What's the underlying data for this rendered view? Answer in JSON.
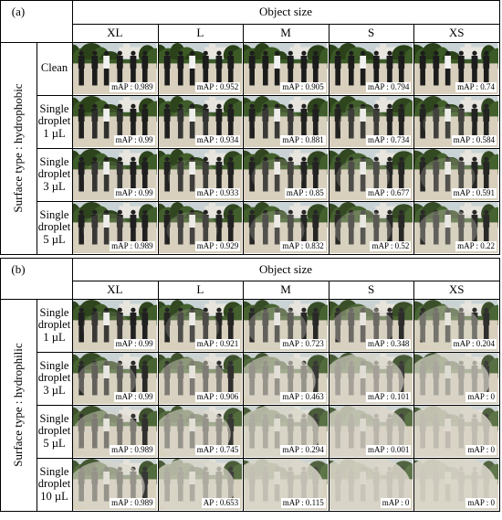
{
  "panels": [
    {
      "label": "(a)",
      "header": "Object size",
      "surface": "Surface type : hydrophobic",
      "columns": [
        "XL",
        "L",
        "M",
        "S",
        "XS"
      ],
      "rows": [
        {
          "label": [
            "Clean"
          ],
          "haze": [
            0,
            0,
            0,
            0,
            0
          ],
          "map": [
            "mAP : 0.989",
            "mAP : 0.952",
            "mAP : 0.905",
            "mAP : 0.794",
            "mAP : 0.74"
          ]
        },
        {
          "label": [
            "Single",
            "droplet",
            "1 µL"
          ],
          "haze": [
            0.05,
            0.08,
            0.1,
            0.12,
            0.14
          ],
          "map": [
            "mAP : 0.99",
            "mAP : 0.934",
            "mAP : 0.881",
            "mAP : 0.734",
            "mAP : 0.584"
          ]
        },
        {
          "label": [
            "Single",
            "droplet",
            "3 µL"
          ],
          "haze": [
            0.08,
            0.12,
            0.16,
            0.2,
            0.22
          ],
          "map": [
            "mAP : 0.99",
            "mAP : 0.933",
            "mAP : 0.85",
            "mAP : 0.677",
            "mAP : 0.591"
          ]
        },
        {
          "label": [
            "Single",
            "droplet",
            "5 µL"
          ],
          "haze": [
            0.1,
            0.16,
            0.22,
            0.26,
            0.3
          ],
          "map": [
            "mAP : 0.989",
            "mAP : 0.929",
            "mAP : 0.832",
            "mAP : 0.52",
            "mAP : 0.22"
          ]
        }
      ]
    },
    {
      "label": "(b)",
      "header": "Object size",
      "surface": "Surface type : hydrophilic",
      "columns": [
        "XL",
        "L",
        "M",
        "S",
        "XS"
      ],
      "rows": [
        {
          "label": [
            "Single",
            "droplet",
            "1 µL"
          ],
          "haze": [
            0.1,
            0.2,
            0.3,
            0.36,
            0.4
          ],
          "map": [
            "mAP : 0.99",
            "mAP : 0.921",
            "mAP : 0.723",
            "mAP : 0.348",
            "mAP : 0.204"
          ]
        },
        {
          "label": [
            "Single",
            "droplet",
            "3 µL"
          ],
          "haze": [
            0.3,
            0.45,
            0.6,
            0.68,
            0.72
          ],
          "map": [
            "mAP : 0.99",
            "mAP : 0.906",
            "mAP : 0.463",
            "mAP : 0.101",
            "mAP : 0"
          ]
        },
        {
          "label": [
            "Single",
            "droplet",
            "5 µL"
          ],
          "haze": [
            0.45,
            0.6,
            0.75,
            0.82,
            0.86
          ],
          "map": [
            "mAP : 0.989",
            "mAP : 0.745",
            "mAP : 0.294",
            "mAP : 0.001",
            "mAP : 0"
          ]
        },
        {
          "label": [
            "Single",
            "droplet",
            "10 µL"
          ],
          "haze": [
            0.6,
            0.75,
            0.88,
            0.93,
            0.96
          ],
          "map": [
            "mAP : 0.989",
            "AP : 0.653",
            "mAP : 0.115",
            "mAP : 0",
            "mAP : 0"
          ]
        }
      ]
    }
  ],
  "colors": {
    "sky": "#c9d3d6",
    "trees": "#3c5a26",
    "tree_dark": "#2a4119",
    "ground": "#d8d0bd",
    "building": "#e8e6df",
    "person": "#1c1c1c",
    "shirt_white": "#f2f2f2",
    "haze": "#d9d5c8"
  }
}
